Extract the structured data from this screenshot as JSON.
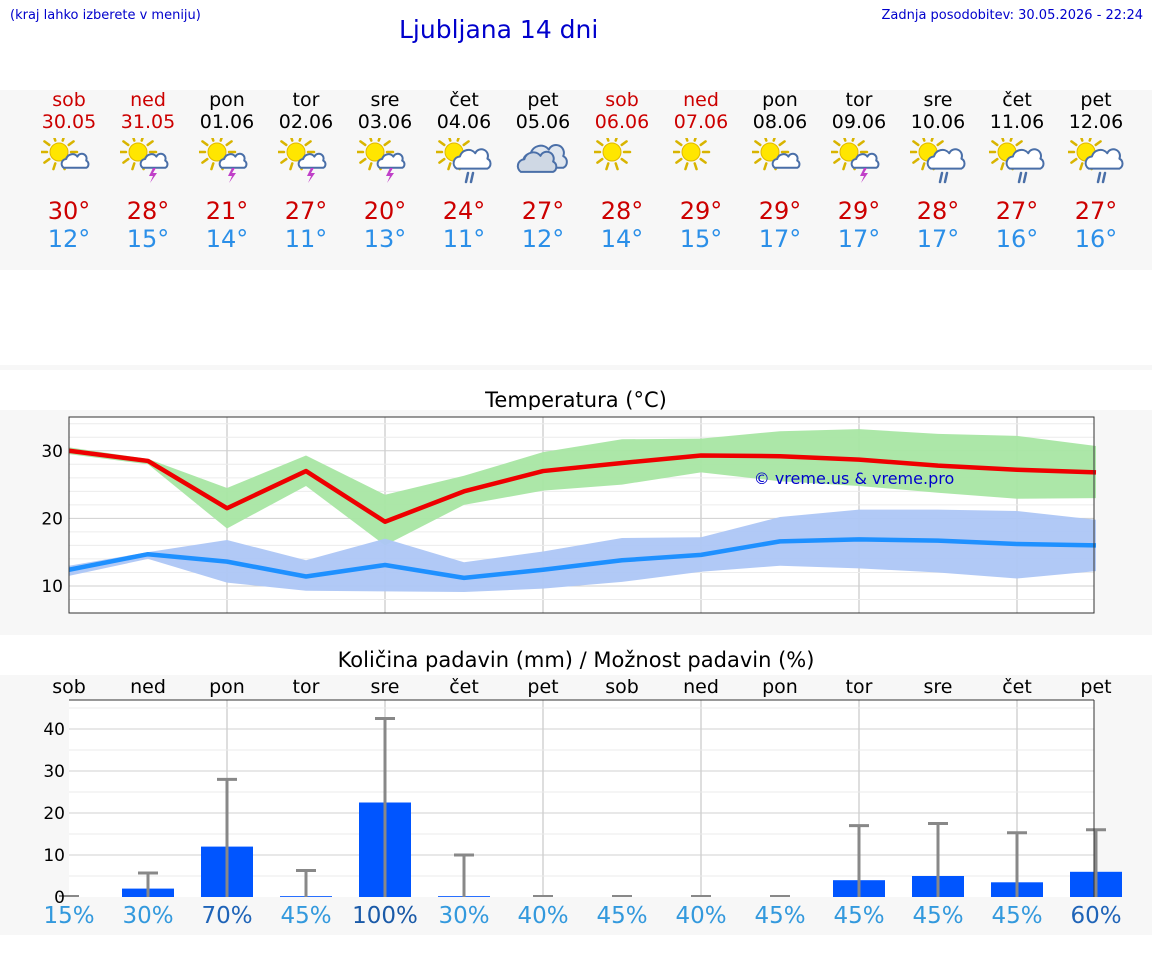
{
  "header": {
    "location_hint": "(kraj lahko izberete v meniju)",
    "title": "Ljubljana 14 dni",
    "updated": "Zadnja posodobitev: 30.05.2026 - 22:24"
  },
  "days": [
    {
      "name": "sob",
      "date": "30.05",
      "weekend": true,
      "icon": "sun-cloud-icon",
      "tmax": "30°",
      "tmin": "12°"
    },
    {
      "name": "ned",
      "date": "31.05",
      "weekend": true,
      "icon": "sun-storm-icon",
      "tmax": "28°",
      "tmin": "15°"
    },
    {
      "name": "pon",
      "date": "01.06",
      "weekend": false,
      "icon": "sun-storm-icon",
      "tmax": "21°",
      "tmin": "14°"
    },
    {
      "name": "tor",
      "date": "02.06",
      "weekend": false,
      "icon": "sun-storm-icon",
      "tmax": "27°",
      "tmin": "11°"
    },
    {
      "name": "sre",
      "date": "03.06",
      "weekend": false,
      "icon": "sun-storm-icon",
      "tmax": "20°",
      "tmin": "13°"
    },
    {
      "name": "čet",
      "date": "04.06",
      "weekend": false,
      "icon": "sun-rain-icon",
      "tmax": "24°",
      "tmin": "11°"
    },
    {
      "name": "pet",
      "date": "05.06",
      "weekend": false,
      "icon": "cloudy-icon",
      "tmax": "27°",
      "tmin": "12°"
    },
    {
      "name": "sob",
      "date": "06.06",
      "weekend": true,
      "icon": "sun-icon",
      "tmax": "28°",
      "tmin": "14°"
    },
    {
      "name": "ned",
      "date": "07.06",
      "weekend": true,
      "icon": "sun-icon",
      "tmax": "29°",
      "tmin": "15°"
    },
    {
      "name": "pon",
      "date": "08.06",
      "weekend": false,
      "icon": "sun-cloud-icon",
      "tmax": "29°",
      "tmin": "17°"
    },
    {
      "name": "tor",
      "date": "09.06",
      "weekend": false,
      "icon": "sun-storm-icon",
      "tmax": "29°",
      "tmin": "17°"
    },
    {
      "name": "sre",
      "date": "10.06",
      "weekend": false,
      "icon": "sun-rain-icon",
      "tmax": "28°",
      "tmin": "17°"
    },
    {
      "name": "čet",
      "date": "11.06",
      "weekend": false,
      "icon": "sun-rain-icon",
      "tmax": "27°",
      "tmin": "16°"
    },
    {
      "name": "pet",
      "date": "12.06",
      "weekend": false,
      "icon": "sun-rain-icon",
      "tmax": "27°",
      "tmin": "16°"
    }
  ],
  "colors": {
    "accent": "#0000cc",
    "weekend": "#cc0000",
    "max_line": "#ee0000",
    "min_line": "#1e90ff",
    "max_band": "#a8e6a3",
    "min_band": "#adc6f5",
    "bar": "#0055ff",
    "whisker": "#888888"
  },
  "chart_data": [
    {
      "type": "line",
      "title": "Temperatura (°C)",
      "watermark": "© vreme.us & vreme.pro",
      "x": [
        "30.05",
        "31.05",
        "01.06",
        "02.06",
        "03.06",
        "04.06",
        "05.06",
        "06.06",
        "07.06",
        "08.06",
        "09.06",
        "10.06",
        "11.06",
        "12.06"
      ],
      "ylim": [
        6,
        35
      ],
      "yticks": [
        10,
        20,
        30
      ],
      "grid": true,
      "series": [
        {
          "key": "max",
          "values": [
            30,
            28.5,
            21.5,
            27,
            19.5,
            24,
            27,
            28.2,
            29.3,
            29.2,
            28.7,
            27.8,
            27.2,
            26.8
          ],
          "band_low": [
            29.5,
            28,
            18.5,
            24.8,
            16,
            22,
            24.1,
            25,
            26.8,
            25.5,
            24.8,
            23.8,
            22.9,
            23
          ],
          "band_high": [
            30.5,
            28.8,
            24.5,
            29.3,
            23.5,
            26.3,
            29.8,
            31.7,
            31.8,
            32.9,
            33.2,
            32.5,
            32.2,
            30.7
          ]
        },
        {
          "key": "min",
          "values": [
            12.4,
            14.7,
            13.6,
            11.4,
            13.1,
            11.2,
            12.4,
            13.8,
            14.6,
            16.6,
            16.9,
            16.7,
            16.2,
            16
          ],
          "band_low": [
            11.5,
            14,
            10.5,
            9.3,
            9.2,
            9.1,
            9.6,
            10.6,
            12.1,
            13,
            12.6,
            12,
            11.1,
            12.2
          ],
          "band_high": [
            13,
            15,
            16.8,
            13.8,
            17,
            13.5,
            15.1,
            17.1,
            17.2,
            20.2,
            21.3,
            21.3,
            21.1,
            19.8
          ]
        }
      ]
    },
    {
      "type": "bar",
      "title": "Količina padavin (mm) / Možnost padavin (%)",
      "categories": [
        "sob",
        "ned",
        "pon",
        "tor",
        "sre",
        "čet",
        "pet",
        "sob",
        "ned",
        "pon",
        "tor",
        "sre",
        "čet",
        "pet"
      ],
      "values": [
        0,
        2,
        12,
        0.2,
        22.5,
        0.2,
        0,
        0,
        0,
        0,
        4,
        5,
        3.5,
        6
      ],
      "error_high": [
        0,
        5.7,
        28,
        6.3,
        42.5,
        10,
        0,
        0,
        0,
        0,
        17,
        17.5,
        15.3,
        16
      ],
      "chance": [
        "15%",
        "30%",
        "70%",
        "45%",
        "100%",
        "30%",
        "40%",
        "45%",
        "40%",
        "45%",
        "45%",
        "45%",
        "45%",
        "60%"
      ],
      "yticks": [
        0,
        10,
        20,
        30,
        40
      ],
      "ylim": [
        0,
        45
      ],
      "grid": true
    }
  ]
}
